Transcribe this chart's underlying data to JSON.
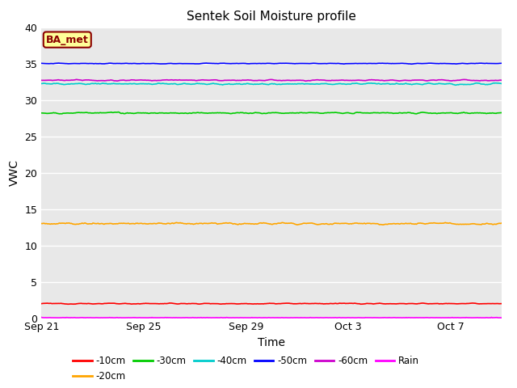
{
  "title": "Sentek Soil Moisture profile",
  "xlabel": "Time",
  "ylabel": "VWC",
  "ylim": [
    0,
    40
  ],
  "xlim_days": 18,
  "background_color": "#e8e8e8",
  "annotation_text": "BA_met",
  "annotation_bg": "#ffff99",
  "annotation_border": "#8b0000",
  "series": {
    "-10cm": {
      "color": "#ff0000",
      "mean": 2.0,
      "noise_scale": 0.08
    },
    "-20cm": {
      "color": "#ffa500",
      "mean": 13.0,
      "noise_scale": 0.18
    },
    "-30cm": {
      "color": "#00cc00",
      "mean": 28.2,
      "noise_scale": 0.12
    },
    "-40cm": {
      "color": "#00cccc",
      "mean": 32.2,
      "noise_scale": 0.15
    },
    "-50cm": {
      "color": "#0000ff",
      "mean": 35.0,
      "noise_scale": 0.06
    },
    "-60cm": {
      "color": "#cc00cc",
      "mean": 32.7,
      "noise_scale": 0.1
    },
    "Rain": {
      "color": "#ff00ff",
      "mean": 0.05,
      "noise_scale": 0.02
    }
  },
  "series_order": [
    "-10cm",
    "-20cm",
    "-30cm",
    "-40cm",
    "-50cm",
    "-60cm",
    "Rain"
  ],
  "x_ticks_labels": [
    "Sep 21",
    "Sep 25",
    "Sep 29",
    "Oct 3",
    "Oct 7"
  ],
  "x_ticks_days": [
    0,
    4,
    8,
    12,
    16
  ],
  "yticks": [
    0,
    5,
    10,
    15,
    20,
    25,
    30,
    35,
    40
  ],
  "grid_color": "#ffffff",
  "line_width": 1.2,
  "title_fontsize": 11,
  "tick_fontsize": 9,
  "label_fontsize": 10,
  "legend_fontsize": 8.5
}
